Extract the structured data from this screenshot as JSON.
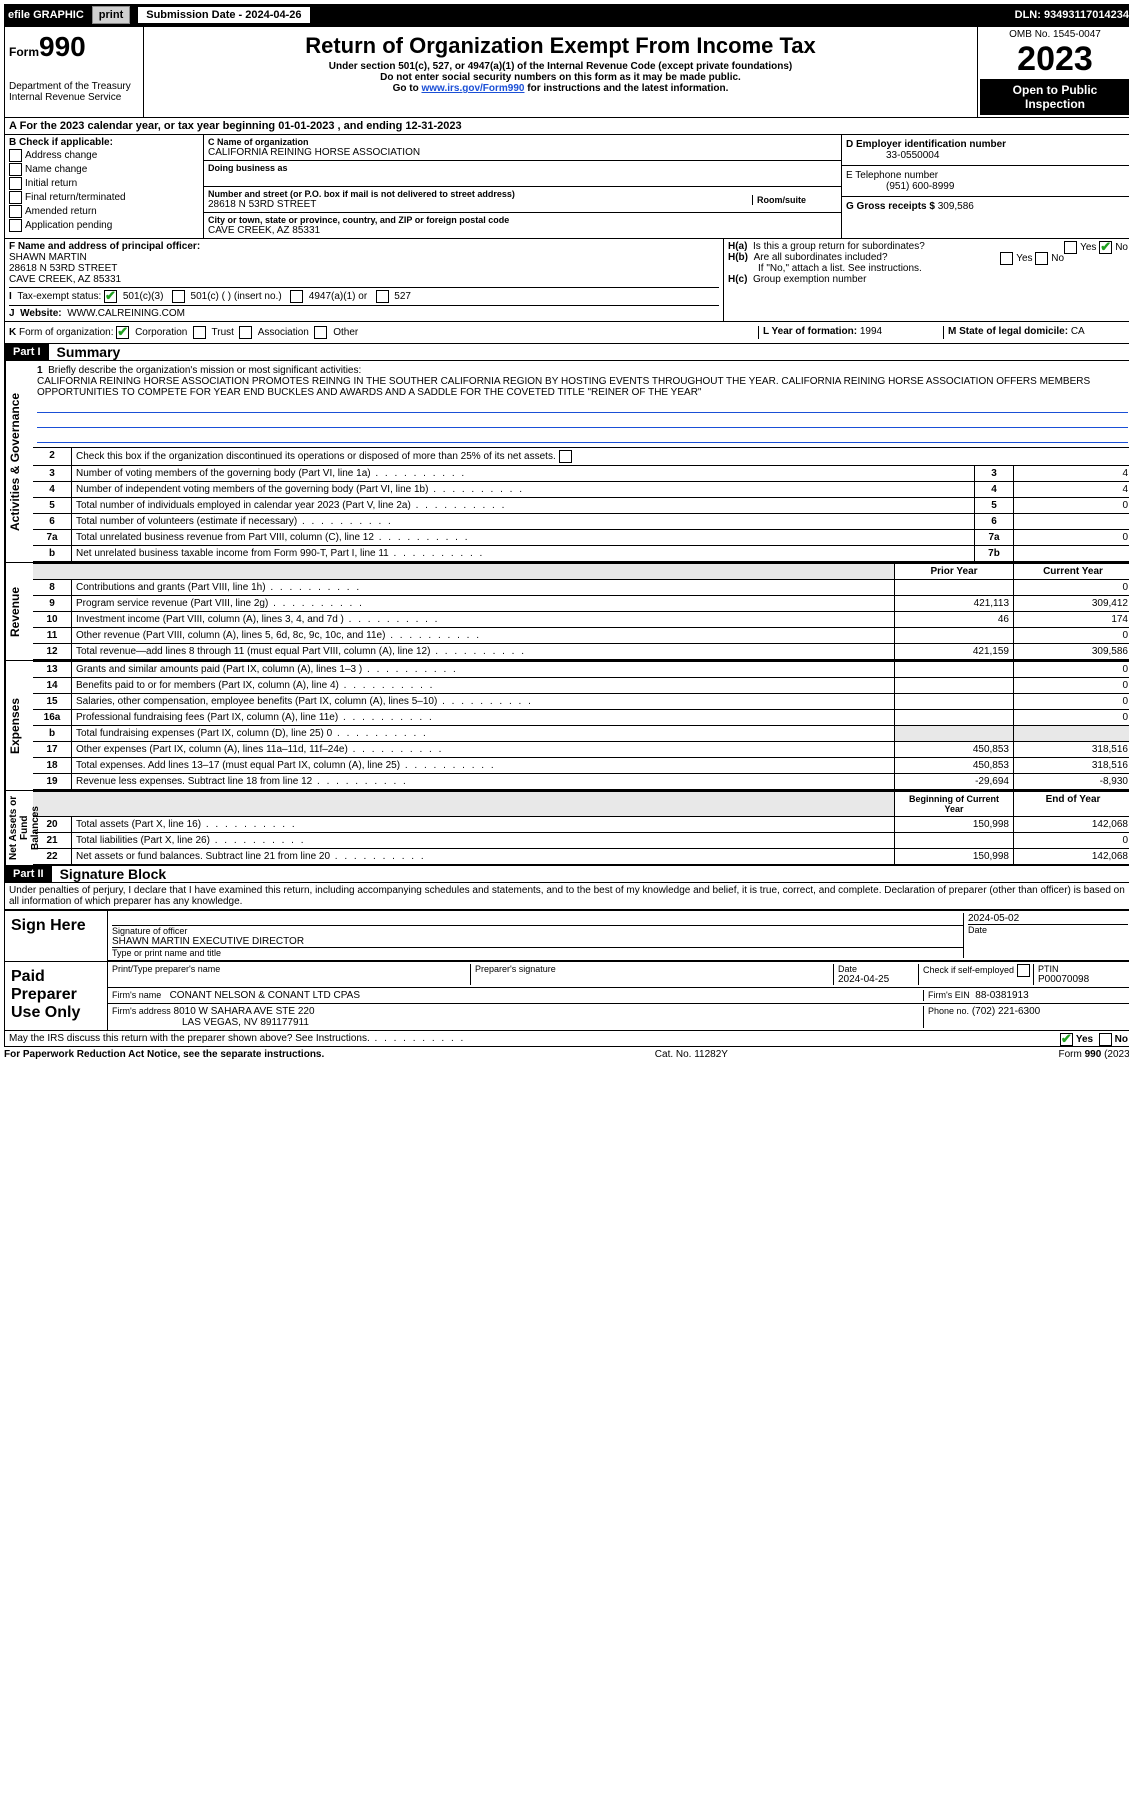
{
  "top": {
    "efile": "efile GRAPHIC",
    "print": "print",
    "sub_label": "Submission Date - 2024-04-26",
    "dln": "DLN: 93493117014234"
  },
  "header": {
    "form_label": "Form",
    "form_num": "990",
    "title": "Return of Organization Exempt From Income Tax",
    "sub1": "Under section 501(c), 527, or 4947(a)(1) of the Internal Revenue Code (except private foundations)",
    "sub2": "Do not enter social security numbers on this form as it may be made public.",
    "sub3_pre": "Go to ",
    "sub3_link": "www.irs.gov/Form990",
    "sub3_post": " for instructions and the latest information.",
    "dept": "Department of the Treasury",
    "irs": "Internal Revenue Service",
    "omb": "OMB No. 1545-0047",
    "year": "2023",
    "open": "Open to Public Inspection"
  },
  "lineA": "For the 2023 calendar year, or tax year beginning 01-01-2023    , and ending 12-31-2023",
  "boxB": {
    "label": "B Check if applicable:",
    "items": [
      "Address change",
      "Name change",
      "Initial return",
      "Final return/terminated",
      "Amended return",
      "Application pending"
    ]
  },
  "boxC": {
    "name_label": "C Name of organization",
    "name": "CALIFORNIA REINING HORSE ASSOCIATION",
    "dba_label": "Doing business as",
    "dba": "",
    "addr_label": "Number and street (or P.O. box if mail is not delivered to street address)",
    "room_label": "Room/suite",
    "addr": "28618 N 53RD STREET",
    "city_label": "City or town, state or province, country, and ZIP or foreign postal code",
    "city": "CAVE CREEK, AZ  85331"
  },
  "boxD": {
    "label": "D Employer identification number",
    "val": "33-0550004"
  },
  "boxE": {
    "label": "E Telephone number",
    "val": "(951) 600-8999"
  },
  "boxG": {
    "label": "G Gross receipts $",
    "val": "309,586"
  },
  "boxF": {
    "label": "F Name and address of principal officer:",
    "name": "SHAWN MARTIN",
    "addr1": "28618 N 53RD STREET",
    "addr2": "CAVE CREEK, AZ  85331"
  },
  "boxH": {
    "a": "Is this a group return for subordinates?",
    "b": "Are all subordinates included?",
    "note": "If \"No,\" attach a list. See instructions.",
    "c": "Group exemption number",
    "yes": "Yes",
    "no": "No"
  },
  "lineI": {
    "label": "Tax-exempt status:",
    "opts": [
      "501(c)(3)",
      "501(c) (   ) (insert no.)",
      "4947(a)(1) or",
      "527"
    ]
  },
  "lineJ": {
    "label": "Website:",
    "val": "WWW.CALREINING.COM"
  },
  "lineK": {
    "label": "Form of organization:",
    "opts": [
      "Corporation",
      "Trust",
      "Association",
      "Other"
    ]
  },
  "lineL": {
    "label": "L Year of formation:",
    "val": "1994"
  },
  "lineM": {
    "label": "M State of legal domicile:",
    "val": "CA"
  },
  "part1": {
    "label": "Part I",
    "title": "Summary"
  },
  "mission": {
    "label": "Briefly describe the organization's mission or most significant activities:",
    "text": "CALIFORNIA REINING HORSE ASSOCIATION PROMOTES REINNG IN THE SOUTHER CALIFORNIA REGION BY HOSTING EVENTS THROUGHOUT THE YEAR. CALIFORNIA REINING HORSE ASSOCIATION OFFERS MEMBERS OPPORTUNITIES TO COMPETE FOR YEAR END BUCKLES AND AWARDS AND A SADDLE FOR THE COVETED TITLE \"REINER OF THE YEAR\""
  },
  "summary": {
    "vert1": "Activities & Governance",
    "vert2": "Revenue",
    "vert3": "Expenses",
    "vert4": "Net Assets or Fund Balances",
    "line2": "Check this box      if the organization discontinued its operations or disposed of more than 25% of its net assets.",
    "rows_gov": [
      {
        "n": "3",
        "t": "Number of voting members of the governing body (Part VI, line 1a)",
        "box": "3",
        "v": "4"
      },
      {
        "n": "4",
        "t": "Number of independent voting members of the governing body (Part VI, line 1b)",
        "box": "4",
        "v": "4"
      },
      {
        "n": "5",
        "t": "Total number of individuals employed in calendar year 2023 (Part V, line 2a)",
        "box": "5",
        "v": "0"
      },
      {
        "n": "6",
        "t": "Total number of volunteers (estimate if necessary)",
        "box": "6",
        "v": ""
      },
      {
        "n": "7a",
        "t": "Total unrelated business revenue from Part VIII, column (C), line 12",
        "box": "7a",
        "v": "0"
      },
      {
        "n": "b",
        "t": "Net unrelated business taxable income from Form 990-T, Part I, line 11",
        "box": "7b",
        "v": ""
      }
    ],
    "hdr_prior": "Prior Year",
    "hdr_curr": "Current Year",
    "rows_rev": [
      {
        "n": "8",
        "t": "Contributions and grants (Part VIII, line 1h)",
        "p": "",
        "c": "0"
      },
      {
        "n": "9",
        "t": "Program service revenue (Part VIII, line 2g)",
        "p": "421,113",
        "c": "309,412"
      },
      {
        "n": "10",
        "t": "Investment income (Part VIII, column (A), lines 3, 4, and 7d )",
        "p": "46",
        "c": "174"
      },
      {
        "n": "11",
        "t": "Other revenue (Part VIII, column (A), lines 5, 6d, 8c, 9c, 10c, and 11e)",
        "p": "",
        "c": "0"
      },
      {
        "n": "12",
        "t": "Total revenue—add lines 8 through 11 (must equal Part VIII, column (A), line 12)",
        "p": "421,159",
        "c": "309,586"
      }
    ],
    "rows_exp": [
      {
        "n": "13",
        "t": "Grants and similar amounts paid (Part IX, column (A), lines 1–3 )",
        "p": "",
        "c": "0"
      },
      {
        "n": "14",
        "t": "Benefits paid to or for members (Part IX, column (A), line 4)",
        "p": "",
        "c": "0"
      },
      {
        "n": "15",
        "t": "Salaries, other compensation, employee benefits (Part IX, column (A), lines 5–10)",
        "p": "",
        "c": "0"
      },
      {
        "n": "16a",
        "t": "Professional fundraising fees (Part IX, column (A), line 11e)",
        "p": "",
        "c": "0"
      },
      {
        "n": "b",
        "t": "Total fundraising expenses (Part IX, column (D), line 25) 0",
        "p": "shade",
        "c": "shade"
      },
      {
        "n": "17",
        "t": "Other expenses (Part IX, column (A), lines 11a–11d, 11f–24e)",
        "p": "450,853",
        "c": "318,516"
      },
      {
        "n": "18",
        "t": "Total expenses. Add lines 13–17 (must equal Part IX, column (A), line 25)",
        "p": "450,853",
        "c": "318,516"
      },
      {
        "n": "19",
        "t": "Revenue less expenses. Subtract line 18 from line 12",
        "p": "-29,694",
        "c": "-8,930"
      }
    ],
    "hdr_beg": "Beginning of Current Year",
    "hdr_end": "End of Year",
    "rows_net": [
      {
        "n": "20",
        "t": "Total assets (Part X, line 16)",
        "p": "150,998",
        "c": "142,068"
      },
      {
        "n": "21",
        "t": "Total liabilities (Part X, line 26)",
        "p": "",
        "c": "0"
      },
      {
        "n": "22",
        "t": "Net assets or fund balances. Subtract line 21 from line 20",
        "p": "150,998",
        "c": "142,068"
      }
    ]
  },
  "part2": {
    "label": "Part II",
    "title": "Signature Block"
  },
  "perjury": "Under penalties of perjury, I declare that I have examined this return, including accompanying schedules and statements, and to the best of my knowledge and belief, it is true, correct, and complete. Declaration of preparer (other than officer) is based on all information of which preparer has any knowledge.",
  "sign": {
    "here": "Sign Here",
    "sig_label": "Signature of officer",
    "sig_name": "SHAWN MARTIN  EXECUTIVE DIRECTOR",
    "type_label": "Type or print name and title",
    "date_label": "Date",
    "date": "2024-05-02"
  },
  "paid": {
    "label": "Paid Preparer Use Only",
    "name_label": "Print/Type preparer's name",
    "name": "",
    "psig_label": "Preparer's signature",
    "pdate_label": "Date",
    "pdate": "2024-04-25",
    "check_label": "Check        if self-employed",
    "ptin_label": "PTIN",
    "ptin": "P00070098",
    "firm_name_label": "Firm's name",
    "firm_name": "CONANT NELSON & CONANT LTD CPAS",
    "firm_ein_label": "Firm's EIN",
    "firm_ein": "88-0381913",
    "firm_addr_label": "Firm's address",
    "firm_addr1": "8010 W SAHARA AVE STE 220",
    "firm_addr2": "LAS VEGAS, NV  891177911",
    "phone_label": "Phone no.",
    "phone": "(702) 221-6300"
  },
  "discuss": {
    "text": "May the IRS discuss this return with the preparer shown above? See Instructions.",
    "yes": "Yes",
    "no": "No"
  },
  "footer": {
    "left": "For Paperwork Reduction Act Notice, see the separate instructions.",
    "mid": "Cat. No. 11282Y",
    "right": "Form 990 (2023)"
  },
  "colors": {
    "link": "#1a4fd6",
    "check": "#1fa01f"
  }
}
